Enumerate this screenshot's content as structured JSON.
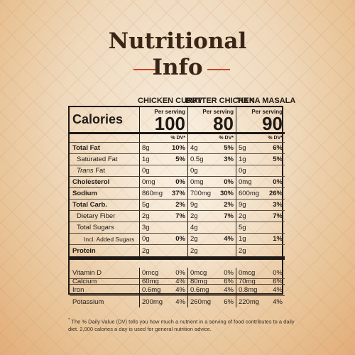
{
  "title": {
    "line1": "Nutritional",
    "line2": "Info"
  },
  "columns": [
    "CHICKEN CURRY",
    "BUTTER CHICKEN",
    "TIKKA MASALA"
  ],
  "calories": {
    "label": "Calories",
    "per_serving": "Per serving",
    "values": [
      "100",
      "80",
      "90"
    ]
  },
  "dv_header": "% DV*",
  "rows": {
    "total_fat": {
      "label": "Total Fat",
      "cells": [
        [
          "8g",
          "10%"
        ],
        [
          "4g",
          "5%"
        ],
        [
          "5g",
          "6%"
        ]
      ]
    },
    "saturated_fat": {
      "label": "Saturated Fat",
      "cells": [
        [
          "1g",
          "5%"
        ],
        [
          "0.5g",
          "3%"
        ],
        [
          "1g",
          "5%"
        ]
      ]
    },
    "trans_fat": {
      "label_italic": "Trans",
      "label_rest": " Fat",
      "cells": [
        [
          "0g",
          ""
        ],
        [
          "0g",
          ""
        ],
        [
          "0g",
          ""
        ]
      ]
    },
    "cholesterol": {
      "label": "Cholesterol",
      "cells": [
        [
          "0mg",
          "0%"
        ],
        [
          "0mg",
          "0%"
        ],
        [
          "0mg",
          "0%"
        ]
      ]
    },
    "sodium": {
      "label": "Sodium",
      "cells": [
        [
          "860mg",
          "37%"
        ],
        [
          "700mg",
          "30%"
        ],
        [
          "600mg",
          "26%"
        ]
      ]
    },
    "total_carb": {
      "label": "Total Carb.",
      "cells": [
        [
          "5g",
          "2%"
        ],
        [
          "9g",
          "2%"
        ],
        [
          "9g",
          "3%"
        ]
      ]
    },
    "dietary_fiber": {
      "label": "Dietary Fiber",
      "cells": [
        [
          "2g",
          "7%"
        ],
        [
          "2g",
          "7%"
        ],
        [
          "2g",
          "7%"
        ]
      ]
    },
    "total_sugars": {
      "label": "Total Sugars",
      "cells": [
        [
          "3g",
          ""
        ],
        [
          "4g",
          ""
        ],
        [
          "5g",
          ""
        ]
      ]
    },
    "added_sugars": {
      "label": "Incl. Added Sugars",
      "cells": [
        [
          "0g",
          "0%"
        ],
        [
          "2g",
          "4%"
        ],
        [
          "1g",
          "1%"
        ]
      ]
    },
    "protein": {
      "label": "Protein",
      "cells": [
        [
          "2g",
          ""
        ],
        [
          "2g",
          ""
        ],
        [
          "2g",
          ""
        ]
      ]
    },
    "vitamin_d": {
      "label": "Vitamin D",
      "cells": [
        [
          "0mcg",
          "0%"
        ],
        [
          "0mcg",
          "0%"
        ],
        [
          "0mcg",
          "0%"
        ]
      ]
    },
    "calcium": {
      "label": "Calcium",
      "cells": [
        [
          "60mg",
          "4%"
        ],
        [
          "80mg",
          "6%"
        ],
        [
          "70mg",
          "6%"
        ]
      ]
    },
    "iron": {
      "label": "Iron",
      "cells": [
        [
          "0.6mg",
          "4%"
        ],
        [
          "0.6mg",
          "4%"
        ],
        [
          "0.8mg",
          "4%"
        ]
      ]
    },
    "potassium": {
      "label": "Potassium",
      "cells": [
        [
          "200mg",
          "4%"
        ],
        [
          "260mg",
          "6%"
        ],
        [
          "220mg",
          "4%"
        ]
      ]
    }
  },
  "footnote": {
    "mark": "*",
    "text": "The % Daily Value (DV) tells you how much a nutrient in a serving of food contributes to a daily diet. 2,000 calories a day is used for general nutrition advice."
  },
  "colors": {
    "title": "#3a2416",
    "accent_line": "#c0482b",
    "background": "#efd9bc"
  }
}
